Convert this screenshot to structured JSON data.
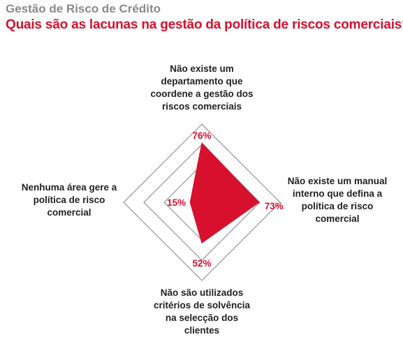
{
  "header": {
    "kicker": "Gestão de Risco de Crédito",
    "question": "Quais são as lacunas na gestão da política de riscos comerciais?"
  },
  "colors": {
    "accent": "#d7102e",
    "grid": "#9a9a9a",
    "kicker": "#8a8a8a",
    "text": "#222222"
  },
  "chart_data": {
    "type": "radar",
    "title": "Quais são as lacunas na gestão da política de riscos comerciais?",
    "axes": [
      {
        "label": "Não existe um departamento que coordene a gestão dos riscos comerciais",
        "label_lines": [
          "Não existe um",
          "departamento que",
          "coordene a gestão dos",
          "riscos comerciais"
        ],
        "value": 76,
        "value_label": "76%"
      },
      {
        "label": "Não existe um manual interno que defina a política de risco comercial",
        "label_lines": [
          "Não existe um manual",
          "interno que defina a",
          "política de risco",
          "comercial"
        ],
        "value": 73,
        "value_label": "73%"
      },
      {
        "label": "Não são utilizados critérios de solvência na selecção dos clientes",
        "label_lines": [
          "Não são utilizados",
          "critérios de solvência",
          "na selecção dos",
          "clientes"
        ],
        "value": 52,
        "value_label": "52%"
      },
      {
        "label": "Nenhuma área gere a política de risco comercial",
        "label_lines": [
          "Nenhuma área gere a",
          "política de risco",
          "comercial"
        ],
        "value": 15,
        "value_label": "15%"
      }
    ],
    "range": [
      0,
      100
    ],
    "grid_rings": 3
  }
}
